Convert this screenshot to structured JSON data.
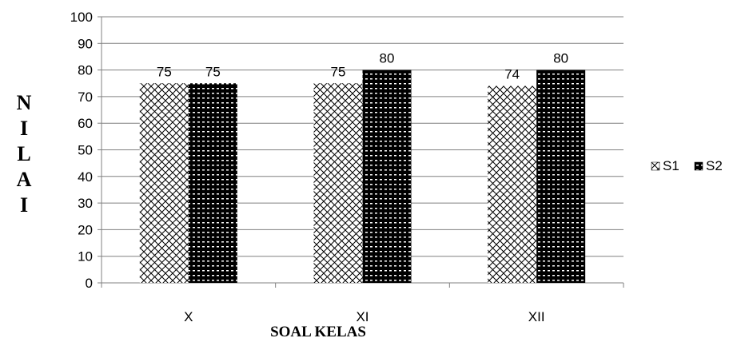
{
  "chart_data": {
    "type": "bar",
    "title": "",
    "xlabel": "SOAL KELAS",
    "ylabel": "NILAI",
    "ylabel_letters": [
      "N",
      "I",
      "L",
      "A",
      "I"
    ],
    "categories": [
      "X",
      "XI",
      "XII"
    ],
    "ylim": [
      0,
      100
    ],
    "yticks": [
      "0",
      "10",
      "20",
      "30",
      "40",
      "50",
      "60",
      "70",
      "80",
      "90",
      "100"
    ],
    "grid": true,
    "legend_position": "right",
    "series": [
      {
        "name": "S1",
        "values": [
          75,
          75,
          74
        ],
        "pattern": "crosshatch",
        "color": "#000000"
      },
      {
        "name": "S2",
        "values": [
          75,
          80,
          80
        ],
        "pattern": "dense-dots",
        "color": "#000000"
      }
    ],
    "data_labels": [
      [
        "75",
        "75",
        "74"
      ],
      [
        "75",
        "80",
        "80"
      ]
    ]
  }
}
